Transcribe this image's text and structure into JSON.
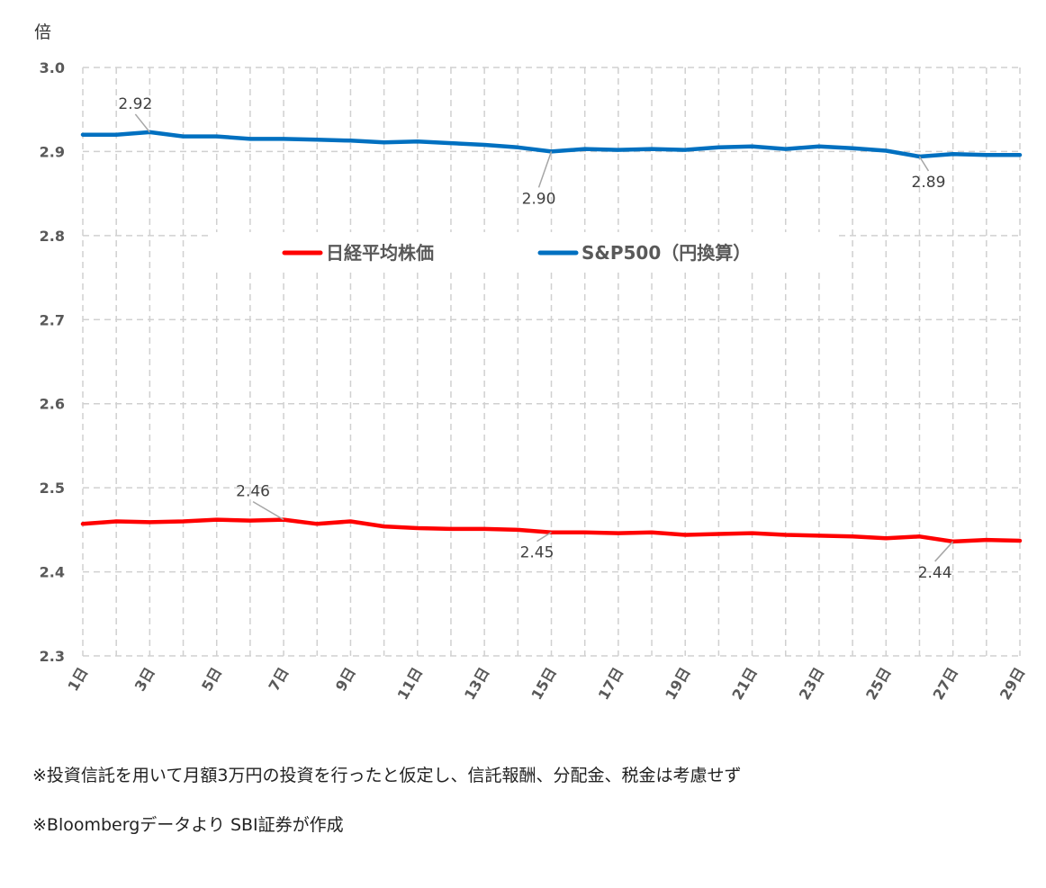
{
  "chart_data": {
    "type": "line",
    "unit_label": "倍",
    "ylim": [
      2.3,
      3.0
    ],
    "y_ticks": [
      "2.3",
      "2.4",
      "2.5",
      "2.6",
      "2.7",
      "2.8",
      "2.9",
      "3.0"
    ],
    "x": [
      "1日",
      "2日",
      "3日",
      "4日",
      "5日",
      "6日",
      "7日",
      "8日",
      "9日",
      "10日",
      "11日",
      "12日",
      "13日",
      "14日",
      "15日",
      "16日",
      "17日",
      "18日",
      "19日",
      "20日",
      "21日",
      "22日",
      "23日",
      "24日",
      "25日",
      "26日",
      "27日",
      "28日",
      "29日"
    ],
    "x_tick_labels": [
      "1日",
      "3日",
      "5日",
      "7日",
      "9日",
      "11日",
      "13日",
      "15日",
      "17日",
      "19日",
      "21日",
      "23日",
      "25日",
      "27日",
      "29日"
    ],
    "grid": "dashed vertical and horizontal",
    "legend_position": "inside-upper-center",
    "series": [
      {
        "name": "日経平均株価",
        "color": "#ff0000",
        "values": [
          2.457,
          2.46,
          2.459,
          2.46,
          2.462,
          2.461,
          2.462,
          2.457,
          2.46,
          2.454,
          2.452,
          2.451,
          2.451,
          2.45,
          2.447,
          2.447,
          2.446,
          2.447,
          2.444,
          2.445,
          2.446,
          2.444,
          2.443,
          2.442,
          2.44,
          2.442,
          2.436,
          2.438,
          2.437
        ]
      },
      {
        "name": "S&P500（円換算）",
        "color": "#0070c0",
        "values": [
          2.92,
          2.92,
          2.923,
          2.918,
          2.918,
          2.915,
          2.915,
          2.914,
          2.913,
          2.911,
          2.912,
          2.91,
          2.908,
          2.905,
          2.9,
          2.903,
          2.902,
          2.903,
          2.902,
          2.905,
          2.906,
          2.903,
          2.906,
          2.904,
          2.901,
          2.894,
          2.897,
          2.896,
          2.896
        ]
      }
    ],
    "annotations": [
      {
        "text": "2.92",
        "series": 1,
        "index": 2
      },
      {
        "text": "2.90",
        "series": 1,
        "index": 14
      },
      {
        "text": "2.89",
        "series": 1,
        "index": 25
      },
      {
        "text": "2.46",
        "series": 0,
        "index": 6
      },
      {
        "text": "2.45",
        "series": 0,
        "index": 14
      },
      {
        "text": "2.44",
        "series": 0,
        "index": 26
      }
    ]
  },
  "notes": {
    "line1": "※投資信託を用いて月額3万円の投資を行ったと仮定し、信託報酬、分配金、税金は考慮せず",
    "line2": "※Bloombergデータより SBI証券が作成"
  }
}
